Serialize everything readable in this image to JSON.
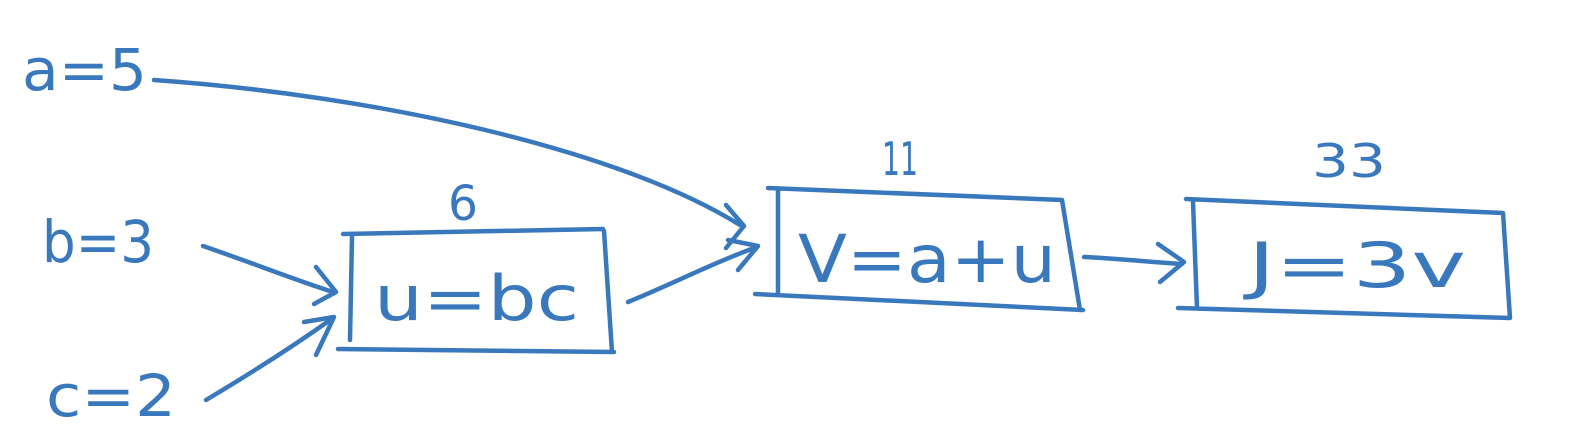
{
  "colors": {
    "ink": "#3a78bd",
    "background": "#ffffff"
  },
  "inputs": [
    {
      "id": "a",
      "label": "a=5"
    },
    {
      "id": "b",
      "label": "b=3"
    },
    {
      "id": "c",
      "label": "c=2"
    }
  ],
  "nodes": [
    {
      "id": "u",
      "expression": "u=bc",
      "value": "6"
    },
    {
      "id": "v",
      "expression": "V=a+u",
      "value": "11"
    },
    {
      "id": "J",
      "expression": "J=3v",
      "value": "33"
    }
  ],
  "edges": [
    {
      "from": "a",
      "to": "v"
    },
    {
      "from": "b",
      "to": "u"
    },
    {
      "from": "c",
      "to": "u"
    },
    {
      "from": "u",
      "to": "v"
    },
    {
      "from": "v",
      "to": "J"
    }
  ]
}
